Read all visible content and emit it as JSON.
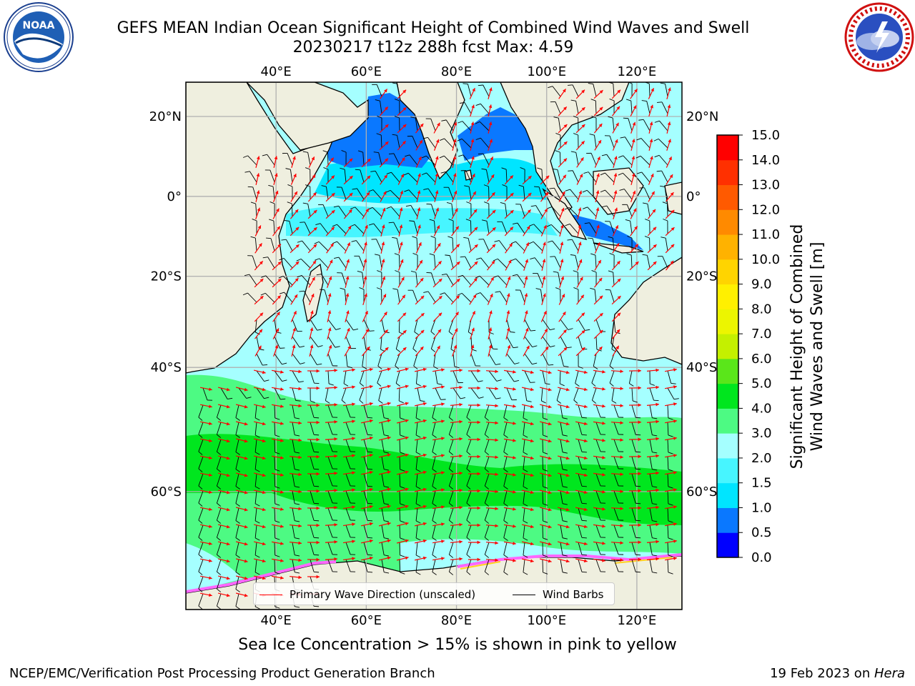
{
  "title": {
    "line1": "GEFS MEAN Indian Ocean Significant Height of Combined Wind Waves and Swell",
    "line2": "20230217 t12z 288h fcst   Max: 4.59"
  },
  "logos": {
    "left": {
      "name": "NOAA",
      "ring_text": "NATIONAL OCEANIC AND ATMOSPHERIC ADMINISTRATION · U.S. DEPARTMENT OF COMMERCE"
    },
    "right": {
      "name": "National Weather Service",
      "ring_text": "NATIONAL WEATHER SERVICE"
    }
  },
  "map": {
    "lon_range": [
      20,
      130
    ],
    "lat_range": [
      -72,
      28
    ],
    "lon_ticks": [
      "40°E",
      "60°E",
      "80°E",
      "100°E",
      "120°E"
    ],
    "lat_ticks": [
      "20°N",
      "0°",
      "20°S",
      "40°S",
      "60°S"
    ],
    "grid": true,
    "colors": {
      "land": "#efefdf",
      "coast": "#000000",
      "grid": "#b0b0b0"
    }
  },
  "legend": {
    "wave_label": "Primary Wave Direction (unscaled)",
    "wave_color": "#ff0000",
    "barb_label": "Wind Barbs",
    "barb_color": "#000000",
    "placement": "lower-center"
  },
  "colorbar": {
    "label_line1": "Significant Height of Combined",
    "label_line2": "Wind Waves and Swell [m]",
    "ticks": [
      "0.0",
      "0.5",
      "1.0",
      "1.5",
      "2.0",
      "3.0",
      "4.0",
      "5.0",
      "6.0",
      "7.0",
      "8.0",
      "9.0",
      "10.0",
      "11.0",
      "12.0",
      "13.0",
      "14.0",
      "15.0"
    ],
    "colors": [
      "#0000ff",
      "#0a78ff",
      "#00e5ff",
      "#47f5ff",
      "#a5ffff",
      "#4dfa83",
      "#00e61e",
      "#5ae61a",
      "#c4f000",
      "#ecf500",
      "#fff000",
      "#ffd400",
      "#ffb200",
      "#ff8a00",
      "#ff5a00",
      "#ff3000",
      "#ff0000"
    ]
  },
  "caption": "Sea Ice Concentration > 15% is shown in pink to yellow",
  "footer": {
    "left": "NCEP/EMC/Verification Post Processing Product Generation Branch",
    "right_prefix": "19 Feb 2023 on ",
    "right_host": "Hera"
  }
}
